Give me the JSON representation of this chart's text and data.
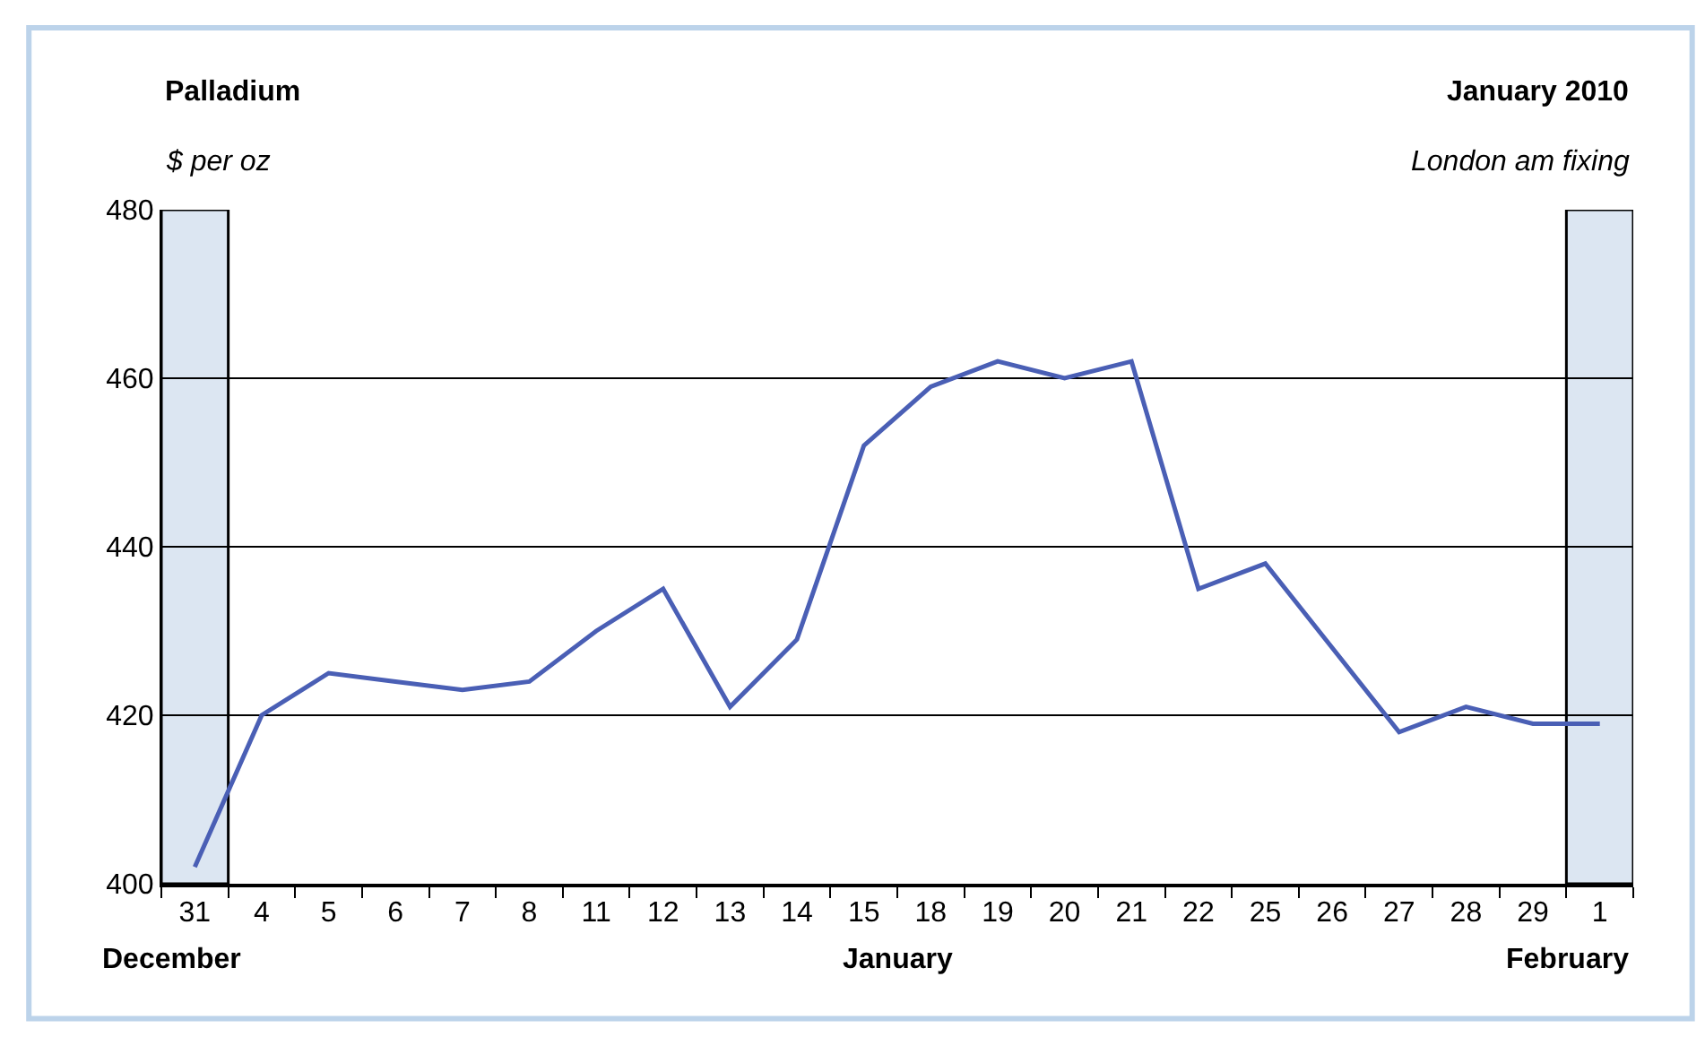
{
  "chart_data": {
    "type": "line",
    "title": "Palladium",
    "subtitle": "January 2010",
    "ylabel": "$ per oz",
    "annotations": [
      "London am fixing",
      "December",
      "January",
      "February"
    ],
    "categories": [
      "31",
      "4",
      "5",
      "6",
      "7",
      "8",
      "11",
      "12",
      "13",
      "14",
      "15",
      "18",
      "19",
      "20",
      "21",
      "22",
      "25",
      "26",
      "27",
      "28",
      "29",
      "1"
    ],
    "series": [
      {
        "color": "#4a5fb5",
        "values": [
          402,
          420,
          425,
          424,
          423,
          424,
          430,
          435,
          421,
          429,
          452,
          459,
          462,
          460,
          462,
          435,
          438,
          428,
          418,
          421,
          419,
          419
        ]
      }
    ],
    "ylim": [
      400,
      480
    ],
    "yticks": [
      400,
      420,
      440,
      460,
      480
    ],
    "grid": "y",
    "marker": "none",
    "line_style": "solid",
    "bands": [
      {
        "axis": "x",
        "from": "31",
        "to": "31",
        "color": "#dce6f2"
      },
      {
        "axis": "x",
        "from": "1",
        "to": "1",
        "color": "#dce6f2"
      }
    ]
  }
}
